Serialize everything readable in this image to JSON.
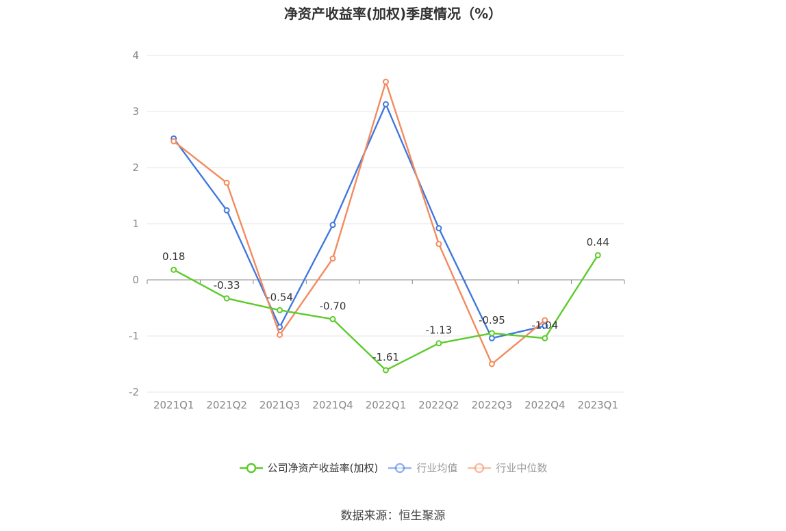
{
  "chart_data": {
    "type": "line",
    "title": "净资产收益率(加权)季度情况（%）",
    "categories": [
      "2021Q1",
      "2021Q2",
      "2021Q3",
      "2021Q4",
      "2022Q1",
      "2022Q2",
      "2022Q3",
      "2022Q4",
      "2023Q1"
    ],
    "ylim": [
      -2,
      4
    ],
    "yticks": [
      "4",
      "3",
      "2",
      "1",
      "0",
      "-1",
      "-2"
    ],
    "grid": true,
    "legend_position": "bottom",
    "series": [
      {
        "name": "公司净资产收益率(加权)",
        "color": "#5ccb2a",
        "values": [
          0.18,
          -0.33,
          -0.54,
          -0.7,
          -1.61,
          -1.13,
          -0.95,
          -1.04,
          0.44
        ],
        "labels": [
          "0.18",
          "-0.33",
          "-0.54",
          "-0.70",
          "-1.61",
          "-1.13",
          "-0.95",
          "-1.04",
          "0.44"
        ]
      },
      {
        "name": "行业均值",
        "color": "#3f78e0",
        "values": [
          2.52,
          1.24,
          -0.84,
          0.98,
          3.13,
          0.92,
          -1.04,
          -0.82,
          null
        ]
      },
      {
        "name": "行业中位数",
        "color": "#f48a5c",
        "values": [
          2.47,
          1.73,
          -0.98,
          0.38,
          3.53,
          0.64,
          -1.5,
          -0.72,
          null
        ]
      }
    ]
  },
  "source": "数据来源：恒生聚源"
}
